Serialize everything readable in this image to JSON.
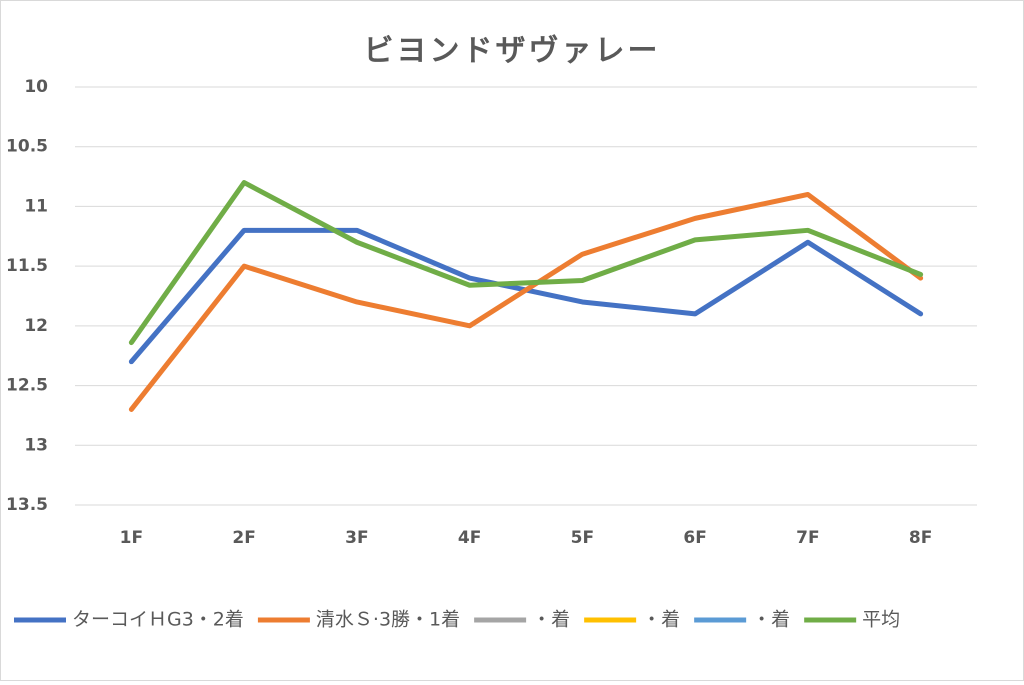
{
  "chart_data": {
    "type": "line",
    "title": "ビヨンドザヴァレー",
    "categories": [
      "1F",
      "2F",
      "3F",
      "4F",
      "5F",
      "6F",
      "7F",
      "8F"
    ],
    "series": [
      {
        "name": "ターコイＨG3・2着",
        "color": "#4472c4",
        "values": [
          12.3,
          11.2,
          11.2,
          11.6,
          11.8,
          11.9,
          11.3,
          11.9
        ]
      },
      {
        "name": "清水Ｓ·3勝・1着",
        "color": "#ed7d31",
        "values": [
          12.7,
          11.5,
          11.8,
          12.0,
          11.4,
          11.1,
          10.9,
          11.6
        ]
      },
      {
        "name": "・着",
        "color": "#a5a5a5",
        "values": [
          null,
          null,
          null,
          null,
          null,
          null,
          null,
          null
        ]
      },
      {
        "name": "・着",
        "color": "#ffc000",
        "values": [
          null,
          null,
          null,
          null,
          null,
          null,
          null,
          null
        ]
      },
      {
        "name": "・着",
        "color": "#5b9bd5",
        "values": [
          null,
          null,
          null,
          null,
          null,
          null,
          null,
          null
        ]
      },
      {
        "name": "平均",
        "color": "#70ad47",
        "values": [
          12.14,
          10.8,
          11.3,
          11.66,
          11.62,
          11.28,
          11.2,
          11.57
        ]
      }
    ],
    "ylim": [
      10,
      13.5
    ],
    "yticks": [
      10,
      10.5,
      11,
      11.5,
      12,
      12.5,
      13,
      13.5
    ],
    "yreverse": true,
    "grid": true,
    "legend": "bottom"
  }
}
